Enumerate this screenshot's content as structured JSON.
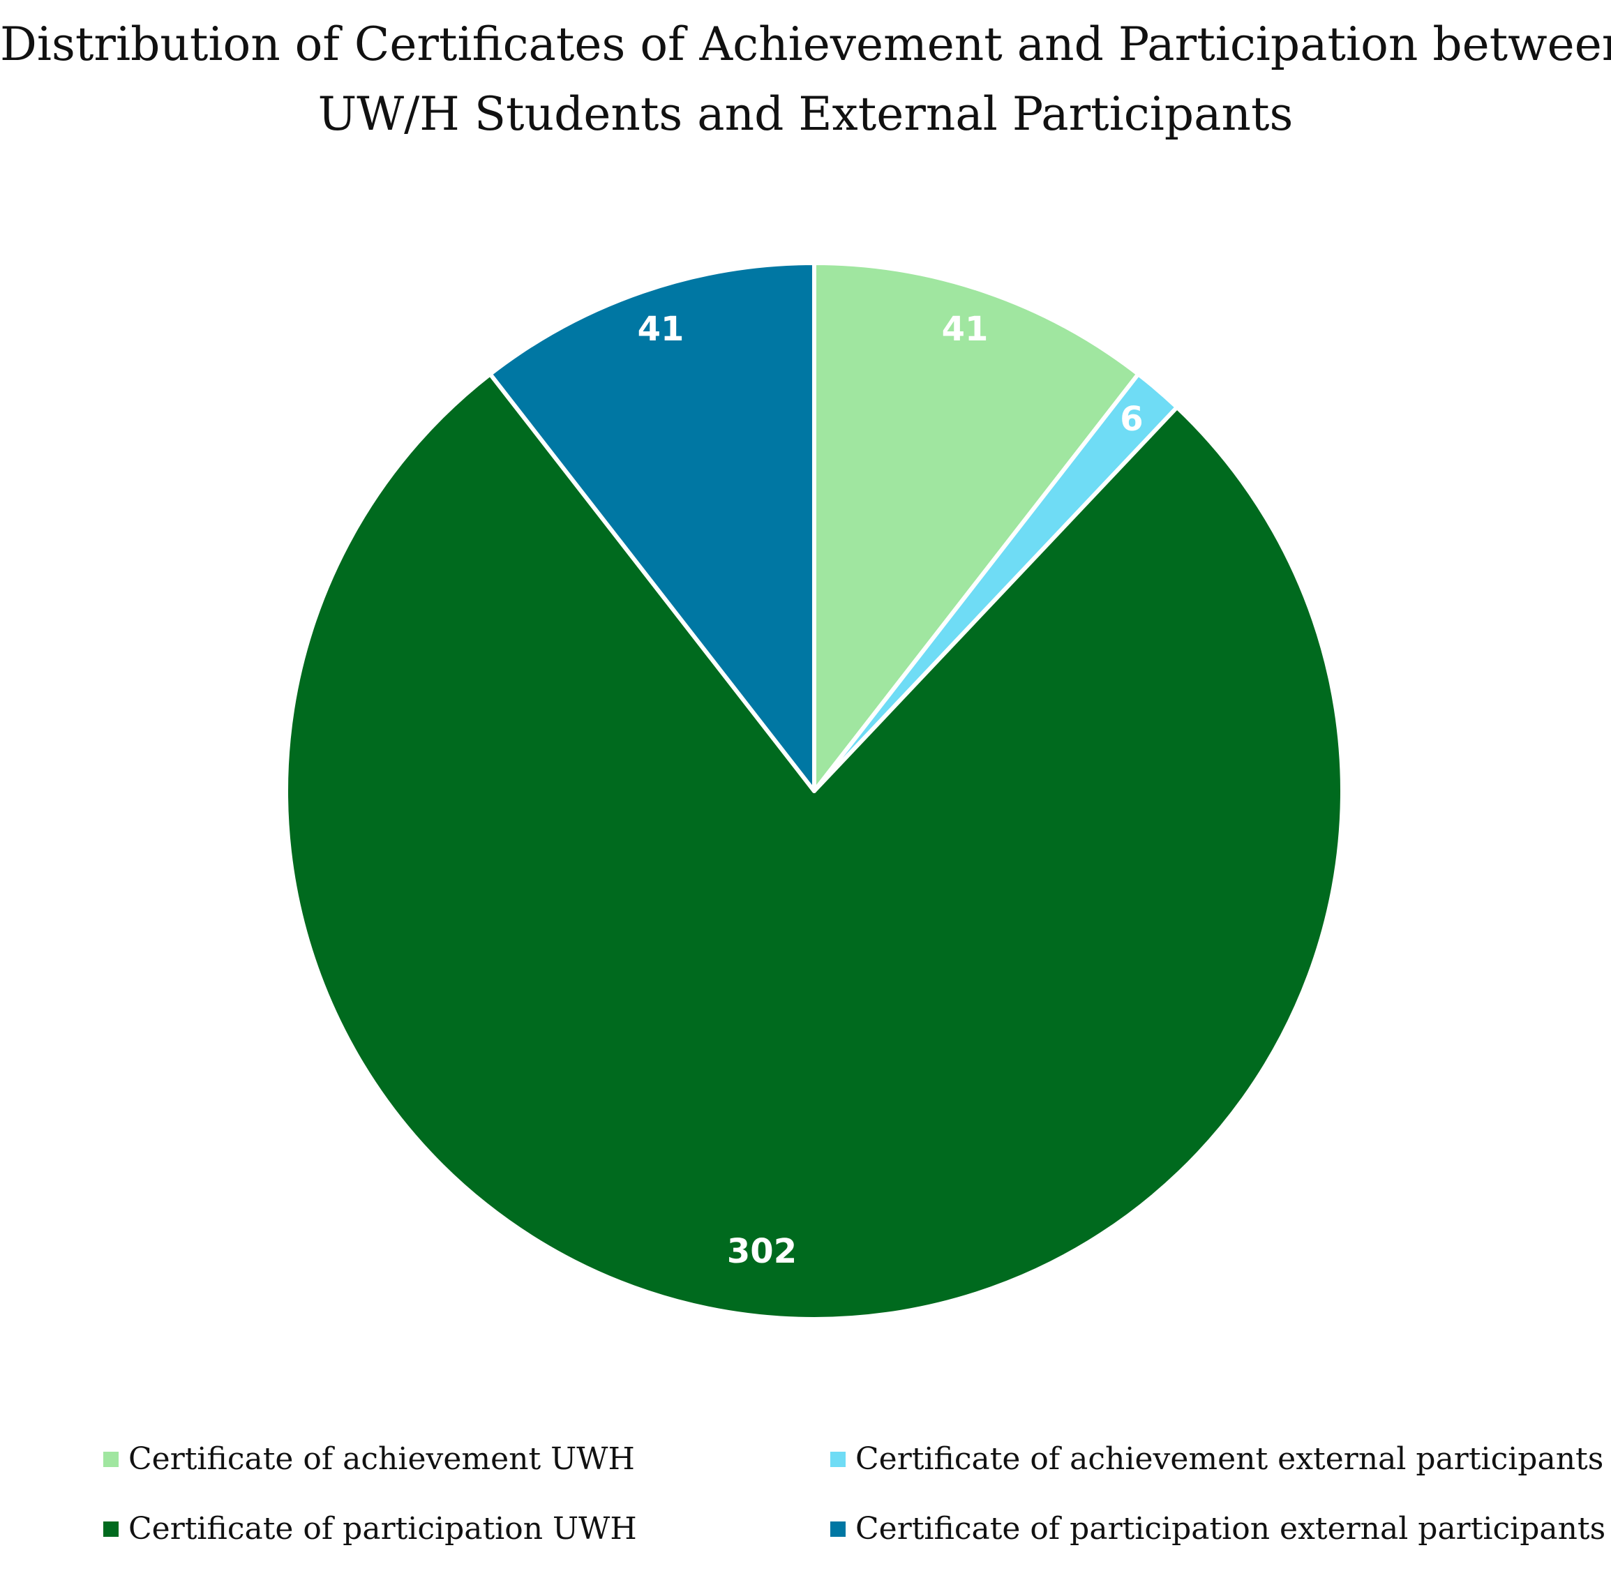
{
  "chart_data": {
    "type": "pie",
    "title_lines": [
      "Distribution of Certificates of Achievement and Participation between",
      "UW/H Students and External Participants"
    ],
    "start_angle_deg": 0,
    "direction": "clockwise",
    "slices": [
      {
        "label": "Certificate of achievement UWH",
        "value": 41,
        "display": "41",
        "color": "#A0E6A0"
      },
      {
        "label": "Certificate of achievement external participants",
        "value": 6,
        "display": "6",
        "color": "#6FDCF5"
      },
      {
        "label": "Certificate of participation UWH",
        "value": 302,
        "display": "302",
        "color": "#006A1E"
      },
      {
        "label": "Certificate of participation external participants",
        "value": 41,
        "display": "41",
        "color": "#0077A3"
      }
    ],
    "legend_position": "bottom",
    "separator_color": "#ffffff"
  }
}
